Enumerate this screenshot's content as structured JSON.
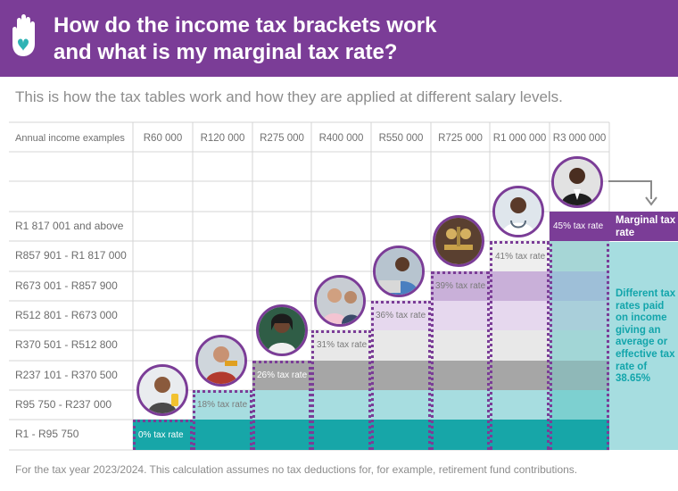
{
  "header": {
    "title_line1": "How do the income tax brackets work",
    "title_line2": "and what is my marginal tax rate?",
    "logo_icon": "hand-icon"
  },
  "subtitle": "This is how the tax tables work and how they are applied at different salary levels.",
  "table": {
    "corner_label": "Annual income examples",
    "columns": [
      "R60 000",
      "R120 000",
      "R275 000",
      "R400 000",
      "R550 000",
      "R725 000",
      "R1 000 000",
      "R3 000 000"
    ],
    "brackets": [
      "R1 817 001 and above",
      "R857 901 - R1 817 000",
      "R673 001 - R857 900",
      "R512 801 - R673 000",
      "R370 501 - R512 800",
      "R237 101 - R370 500",
      "R95 750 - R237 000",
      "R1 - R95 750"
    ],
    "rates": [
      "45% tax rate",
      "41% tax rate",
      "39% tax rate",
      "36% tax rate",
      "31% tax rate",
      "26% tax rate",
      "18% tax rate",
      "0% tax rate"
    ],
    "colors": {
      "r0": "#17a6a8",
      "r18": "#a7dde0",
      "r26": "#a6a6a6",
      "r31": "#e8e8e8",
      "r36": "#e0d0ea",
      "r39": "#c9b0d9",
      "r41": "#a6d6d6",
      "r45": "#7b3d97"
    }
  },
  "sidebar": {
    "marginal_label": "Marginal tax rate",
    "different_label": "Different tax rates paid on income giving an average or effective tax rate of 38.65%"
  },
  "footer": "For the tax year 2023/2024. This calculation assumes no tax deductions for, for example, retirement fund contributions."
}
